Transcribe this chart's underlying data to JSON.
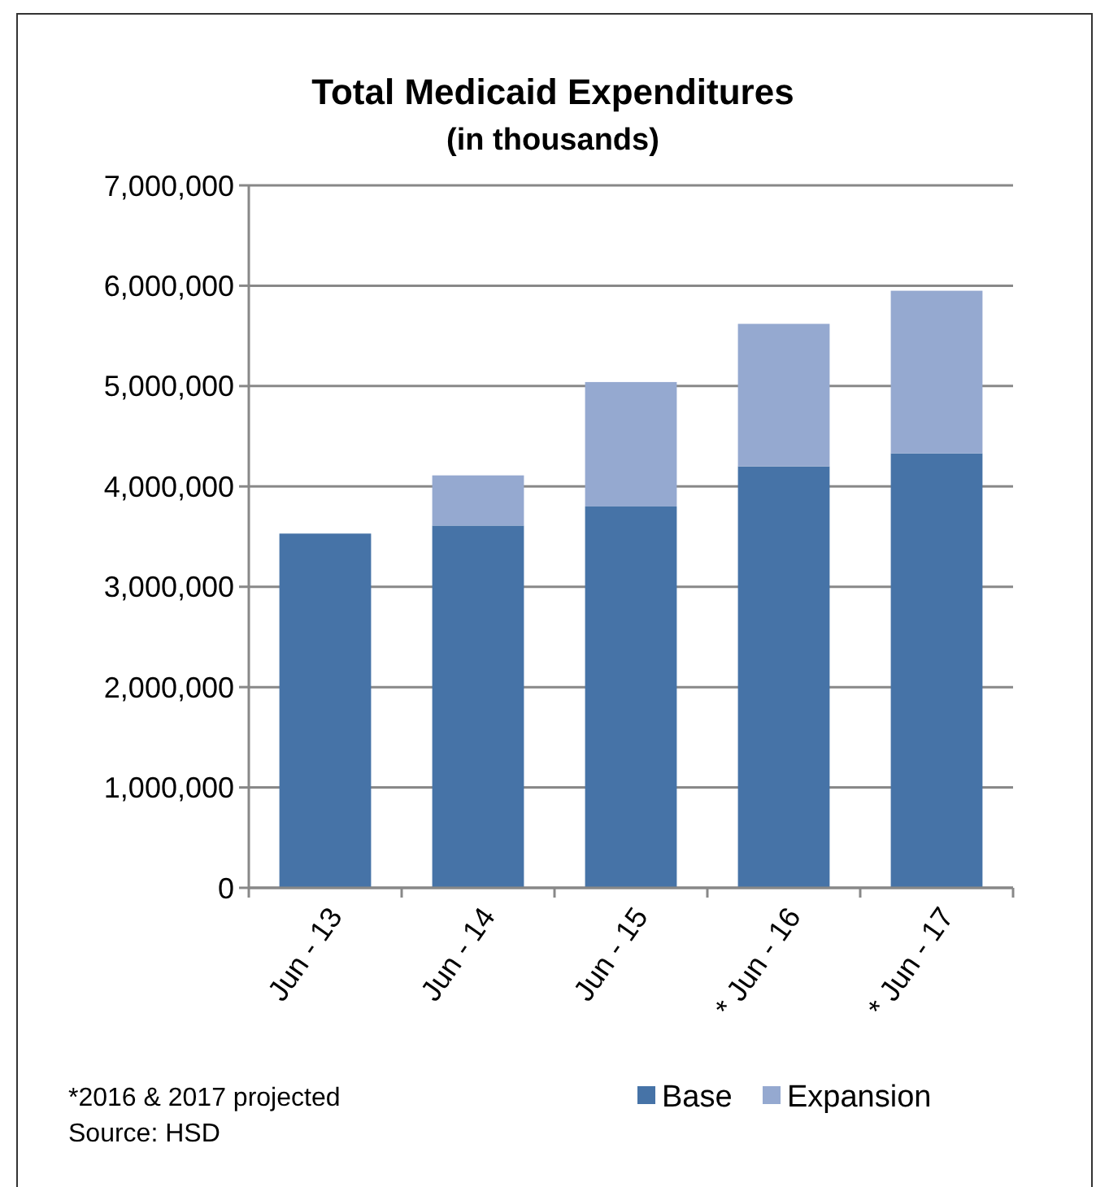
{
  "chart_data": {
    "type": "bar",
    "title": "Total Medicaid Expenditures",
    "subtitle": "(in thousands)",
    "categories": [
      "Jun - 13",
      "Jun - 14",
      "Jun - 15",
      "* Jun - 16",
      "* Jun - 17"
    ],
    "series": [
      {
        "name": "Base",
        "color": "#4673a7",
        "values": [
          3530000,
          3610000,
          3800000,
          4200000,
          4330000
        ]
      },
      {
        "name": "Expansion",
        "color": "#95a9d0",
        "values": [
          0,
          500000,
          1240000,
          1420000,
          1620000
        ]
      }
    ],
    "stacked": true,
    "ylim": [
      0,
      7000000
    ],
    "yticks": [
      {
        "value": 0,
        "label": "0"
      },
      {
        "value": 1000000,
        "label": "1,000,000"
      },
      {
        "value": 2000000,
        "label": "2,000,000"
      },
      {
        "value": 3000000,
        "label": "3,000,000"
      },
      {
        "value": 4000000,
        "label": "4,000,000"
      },
      {
        "value": 5000000,
        "label": "5,000,000"
      },
      {
        "value": 6000000,
        "label": "6,000,000"
      },
      {
        "value": 7000000,
        "label": "7,000,000"
      }
    ],
    "grid": "y",
    "legend": "bottom right",
    "annotations": [
      "*2016 & 2017 projected",
      "Source: HSD"
    ]
  }
}
